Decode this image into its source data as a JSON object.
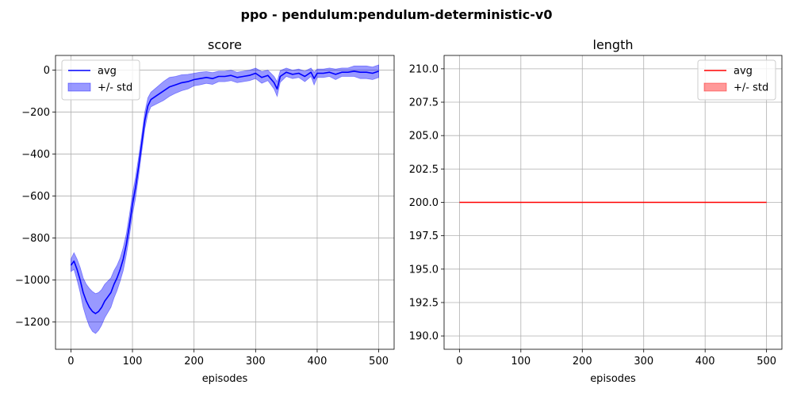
{
  "suptitle": "ppo - pendulum:pendulum-deterministic-v0",
  "chart_data": [
    {
      "type": "line",
      "title": "score",
      "xlabel": "episodes",
      "ylabel": "",
      "xlim": [
        -25,
        525
      ],
      "ylim": [
        -1330,
        70
      ],
      "xticks": [
        0,
        100,
        200,
        300,
        400,
        500
      ],
      "yticks": [
        -1200,
        -1000,
        -800,
        -600,
        -400,
        -200,
        0
      ],
      "grid": true,
      "legend_position": "upper-left",
      "color": "#0000ff",
      "legend": {
        "line": "avg",
        "band": "+/- std"
      },
      "x": [
        0,
        5,
        10,
        15,
        20,
        25,
        30,
        35,
        40,
        45,
        50,
        55,
        60,
        65,
        70,
        75,
        80,
        85,
        90,
        95,
        100,
        105,
        110,
        115,
        120,
        125,
        130,
        140,
        150,
        160,
        170,
        180,
        190,
        200,
        210,
        220,
        230,
        240,
        250,
        260,
        270,
        280,
        290,
        300,
        310,
        320,
        330,
        335,
        340,
        350,
        360,
        370,
        380,
        390,
        395,
        400,
        410,
        420,
        430,
        440,
        450,
        460,
        470,
        480,
        490,
        500
      ],
      "avg": [
        -930,
        -910,
        -950,
        -1000,
        -1060,
        -1100,
        -1130,
        -1150,
        -1160,
        -1150,
        -1130,
        -1100,
        -1080,
        -1060,
        -1020,
        -990,
        -950,
        -900,
        -830,
        -740,
        -640,
        -560,
        -460,
        -350,
        -240,
        -170,
        -140,
        -120,
        -100,
        -80,
        -70,
        -60,
        -55,
        -45,
        -40,
        -35,
        -40,
        -30,
        -30,
        -25,
        -35,
        -30,
        -25,
        -15,
        -35,
        -25,
        -60,
        -90,
        -30,
        -10,
        -20,
        -15,
        -30,
        -10,
        -40,
        -15,
        -15,
        -10,
        -20,
        -10,
        -10,
        -5,
        -10,
        -10,
        -15,
        -5
      ],
      "std": [
        30,
        40,
        50,
        60,
        70,
        80,
        90,
        95,
        95,
        90,
        85,
        80,
        75,
        70,
        65,
        60,
        55,
        55,
        50,
        50,
        50,
        50,
        45,
        40,
        40,
        38,
        35,
        40,
        45,
        45,
        40,
        38,
        35,
        30,
        30,
        28,
        28,
        25,
        25,
        25,
        25,
        25,
        25,
        25,
        28,
        25,
        30,
        35,
        28,
        20,
        20,
        20,
        25,
        20,
        30,
        20,
        20,
        20,
        25,
        20,
        20,
        25,
        30,
        30,
        30,
        30
      ]
    },
    {
      "type": "line",
      "title": "length",
      "xlabel": "episodes",
      "ylabel": "",
      "xlim": [
        -25,
        525
      ],
      "ylim": [
        189,
        211
      ],
      "xticks": [
        0,
        100,
        200,
        300,
        400,
        500
      ],
      "yticks": [
        190.0,
        192.5,
        195.0,
        197.5,
        200.0,
        202.5,
        205.0,
        207.5,
        210.0
      ],
      "ytick_labels": [
        "190.0",
        "192.5",
        "195.0",
        "197.5",
        "200.0",
        "202.5",
        "205.0",
        "207.5",
        "210.0"
      ],
      "grid": true,
      "legend_position": "upper-right",
      "color": "#ff0000",
      "legend": {
        "line": "avg",
        "band": "+/- std"
      },
      "x": [
        0,
        500
      ],
      "avg": [
        200,
        200
      ],
      "std": [
        0,
        0
      ]
    }
  ]
}
